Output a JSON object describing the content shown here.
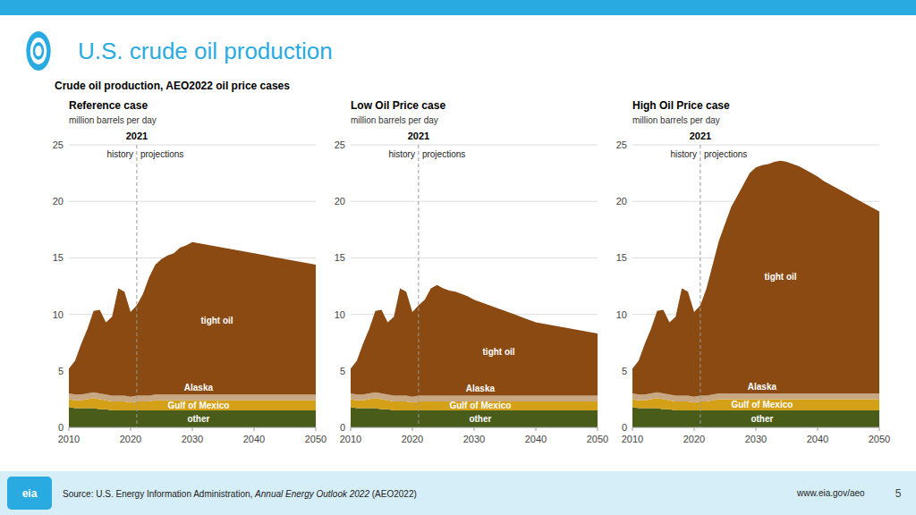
{
  "title": "U.S. crude oil production",
  "subtitle": "Crude oil production, AEO2022 oil price cases",
  "color": "#29ABE2",
  "footer_color": "#D6EEF8",
  "badge": "eia",
  "source_text": "Source: U.S. Energy Information Administration, ",
  "source_italic": "Annual Energy Outlook 2022",
  "source_suffix": " (AEO2022)",
  "url": "www.eia.gov/aeo",
  "page_number": "5",
  "chart_data": [
    {
      "type": "area",
      "stacked": true,
      "grid": true,
      "title": "Reference case",
      "subtitle": "million barrels per day",
      "x": [
        2010,
        2011,
        2012,
        2013,
        2014,
        2015,
        2016,
        2017,
        2018,
        2019,
        2020,
        2021,
        2022,
        2023,
        2024,
        2025,
        2026,
        2027,
        2028,
        2029,
        2030,
        2031,
        2032,
        2033,
        2034,
        2035,
        2036,
        2037,
        2038,
        2039,
        2040,
        2041,
        2042,
        2043,
        2044,
        2045,
        2046,
        2047,
        2048,
        2049,
        2050
      ],
      "xlim": [
        2010,
        2050
      ],
      "xticks": [
        2010,
        2020,
        2030,
        2040,
        2050
      ],
      "ylim": [
        0,
        25
      ],
      "yticks": [
        0,
        5,
        10,
        15,
        20,
        25
      ],
      "annotations": [
        {
          "x": 2021,
          "text": "2021"
        },
        {
          "text": "history"
        },
        {
          "text": "projections"
        }
      ],
      "series": [
        {
          "name": "other",
          "color": "#4A5C1A",
          "values": [
            1.8,
            1.7,
            1.7,
            1.7,
            1.7,
            1.6,
            1.6,
            1.5,
            1.5,
            1.5,
            1.5,
            1.5,
            1.5,
            1.5,
            1.5,
            1.5,
            1.5,
            1.5,
            1.5,
            1.5,
            1.5,
            1.5,
            1.5,
            1.5,
            1.5,
            1.5,
            1.5,
            1.5,
            1.5,
            1.5,
            1.5,
            1.5,
            1.5,
            1.5,
            1.5,
            1.5,
            1.5,
            1.5,
            1.5,
            1.5,
            1.5
          ]
        },
        {
          "name": "Gulf of Mexico",
          "color": "#D4A017",
          "values": [
            0.7,
            0.7,
            0.7,
            0.8,
            0.9,
            0.9,
            0.8,
            0.8,
            0.8,
            0.8,
            0.7,
            0.8,
            0.8,
            0.8,
            0.9,
            0.9,
            0.9,
            0.9,
            0.9,
            0.9,
            0.9,
            0.9,
            0.9,
            0.9,
            0.9,
            0.9,
            0.9,
            0.9,
            0.9,
            0.9,
            0.9,
            0.9,
            0.9,
            0.9,
            0.9,
            0.9,
            0.9,
            0.9,
            0.9,
            0.9,
            0.9
          ]
        },
        {
          "name": "Alaska",
          "color": "#C8A882",
          "values": [
            0.5,
            0.5,
            0.5,
            0.5,
            0.5,
            0.5,
            0.5,
            0.5,
            0.5,
            0.5,
            0.5,
            0.5,
            0.5,
            0.5,
            0.5,
            0.5,
            0.5,
            0.5,
            0.5,
            0.5,
            0.5,
            0.5,
            0.5,
            0.5,
            0.5,
            0.5,
            0.5,
            0.5,
            0.5,
            0.5,
            0.5,
            0.5,
            0.5,
            0.5,
            0.5,
            0.5,
            0.5,
            0.5,
            0.5,
            0.5,
            0.5
          ]
        },
        {
          "name": "tight oil",
          "color": "#8B4A12",
          "values": [
            2.2,
            3.0,
            4.5,
            5.7,
            7.2,
            7.4,
            6.4,
            7.0,
            9.5,
            9.2,
            7.5,
            8.0,
            9.0,
            10.5,
            11.5,
            12.0,
            12.3,
            12.5,
            13.0,
            13.2,
            13.5,
            13.4,
            13.3,
            13.2,
            13.1,
            13.0,
            12.9,
            12.8,
            12.7,
            12.6,
            12.5,
            12.4,
            12.3,
            12.2,
            12.1,
            12.0,
            11.9,
            11.8,
            11.7,
            11.6,
            11.5
          ]
        }
      ]
    },
    {
      "type": "area",
      "stacked": true,
      "grid": true,
      "title": "Low Oil Price case",
      "subtitle": "million barrels per day",
      "x": [
        2010,
        2011,
        2012,
        2013,
        2014,
        2015,
        2016,
        2017,
        2018,
        2019,
        2020,
        2021,
        2022,
        2023,
        2024,
        2025,
        2026,
        2027,
        2028,
        2029,
        2030,
        2031,
        2032,
        2033,
        2034,
        2035,
        2036,
        2037,
        2038,
        2039,
        2040,
        2041,
        2042,
        2043,
        2044,
        2045,
        2046,
        2047,
        2048,
        2049,
        2050
      ],
      "xlim": [
        2010,
        2050
      ],
      "xticks": [
        2010,
        2020,
        2030,
        2040,
        2050
      ],
      "ylim": [
        0,
        25
      ],
      "yticks": [
        0,
        5,
        10,
        15,
        20,
        25
      ],
      "annotations": [
        {
          "x": 2021,
          "text": "2021"
        },
        {
          "text": "history"
        },
        {
          "text": "projections"
        }
      ],
      "series": [
        {
          "name": "other",
          "color": "#4A5C1A",
          "values": [
            1.8,
            1.7,
            1.7,
            1.7,
            1.7,
            1.6,
            1.6,
            1.5,
            1.5,
            1.5,
            1.5,
            1.5,
            1.5,
            1.5,
            1.5,
            1.5,
            1.5,
            1.5,
            1.5,
            1.5,
            1.5,
            1.5,
            1.5,
            1.5,
            1.5,
            1.5,
            1.5,
            1.5,
            1.5,
            1.5,
            1.5,
            1.5,
            1.5,
            1.5,
            1.5,
            1.5,
            1.5,
            1.5,
            1.5,
            1.5,
            1.5
          ]
        },
        {
          "name": "Gulf of Mexico",
          "color": "#D4A017",
          "values": [
            0.7,
            0.7,
            0.7,
            0.8,
            0.9,
            0.9,
            0.8,
            0.8,
            0.8,
            0.8,
            0.7,
            0.8,
            0.8,
            0.8,
            0.8,
            0.8,
            0.8,
            0.8,
            0.8,
            0.8,
            0.8,
            0.8,
            0.8,
            0.8,
            0.8,
            0.8,
            0.8,
            0.8,
            0.8,
            0.8,
            0.8,
            0.8,
            0.8,
            0.8,
            0.8,
            0.8,
            0.8,
            0.8,
            0.8,
            0.8,
            0.8
          ]
        },
        {
          "name": "Alaska",
          "color": "#C8A882",
          "values": [
            0.5,
            0.5,
            0.5,
            0.5,
            0.5,
            0.5,
            0.5,
            0.5,
            0.5,
            0.5,
            0.5,
            0.5,
            0.5,
            0.5,
            0.5,
            0.5,
            0.5,
            0.5,
            0.5,
            0.5,
            0.5,
            0.5,
            0.5,
            0.5,
            0.5,
            0.5,
            0.5,
            0.5,
            0.5,
            0.5,
            0.5,
            0.5,
            0.5,
            0.5,
            0.5,
            0.5,
            0.5,
            0.5,
            0.5,
            0.5,
            0.5
          ]
        },
        {
          "name": "tight oil",
          "color": "#8B4A12",
          "values": [
            2.2,
            3.0,
            4.5,
            5.7,
            7.2,
            7.4,
            6.4,
            7.0,
            9.5,
            9.2,
            7.5,
            8.0,
            8.5,
            9.5,
            9.8,
            9.5,
            9.3,
            9.2,
            9.0,
            8.8,
            8.5,
            8.3,
            8.1,
            7.9,
            7.7,
            7.5,
            7.3,
            7.1,
            6.9,
            6.7,
            6.5,
            6.4,
            6.3,
            6.2,
            6.1,
            6.0,
            5.9,
            5.8,
            5.7,
            5.6,
            5.5
          ]
        }
      ]
    },
    {
      "type": "area",
      "stacked": true,
      "grid": true,
      "title": "High Oil Price case",
      "subtitle": "million barrels per day",
      "x": [
        2010,
        2011,
        2012,
        2013,
        2014,
        2015,
        2016,
        2017,
        2018,
        2019,
        2020,
        2021,
        2022,
        2023,
        2024,
        2025,
        2026,
        2027,
        2028,
        2029,
        2030,
        2031,
        2032,
        2033,
        2034,
        2035,
        2036,
        2037,
        2038,
        2039,
        2040,
        2041,
        2042,
        2043,
        2044,
        2045,
        2046,
        2047,
        2048,
        2049,
        2050
      ],
      "xlim": [
        2010,
        2050
      ],
      "xticks": [
        2010,
        2020,
        2030,
        2040,
        2050
      ],
      "ylim": [
        0,
        25
      ],
      "yticks": [
        0,
        5,
        10,
        15,
        20,
        25
      ],
      "annotations": [
        {
          "x": 2021,
          "text": "2021"
        },
        {
          "text": "history"
        },
        {
          "text": "projections"
        }
      ],
      "series": [
        {
          "name": "other",
          "color": "#4A5C1A",
          "values": [
            1.8,
            1.7,
            1.7,
            1.7,
            1.7,
            1.6,
            1.6,
            1.5,
            1.5,
            1.5,
            1.5,
            1.5,
            1.5,
            1.5,
            1.5,
            1.5,
            1.5,
            1.5,
            1.5,
            1.5,
            1.5,
            1.5,
            1.5,
            1.5,
            1.5,
            1.5,
            1.5,
            1.5,
            1.5,
            1.5,
            1.5,
            1.5,
            1.5,
            1.5,
            1.5,
            1.5,
            1.5,
            1.5,
            1.5,
            1.5,
            1.5
          ]
        },
        {
          "name": "Gulf of Mexico",
          "color": "#D4A017",
          "values": [
            0.7,
            0.7,
            0.7,
            0.8,
            0.9,
            0.9,
            0.8,
            0.8,
            0.8,
            0.8,
            0.7,
            0.8,
            0.8,
            0.9,
            1.0,
            1.0,
            1.0,
            1.0,
            1.0,
            1.0,
            1.0,
            1.0,
            1.0,
            1.0,
            1.0,
            1.0,
            1.0,
            1.0,
            1.0,
            1.0,
            1.0,
            1.0,
            1.0,
            1.0,
            1.0,
            1.0,
            1.0,
            1.0,
            1.0,
            1.0,
            1.0
          ]
        },
        {
          "name": "Alaska",
          "color": "#C8A882",
          "values": [
            0.5,
            0.5,
            0.5,
            0.5,
            0.5,
            0.5,
            0.5,
            0.5,
            0.5,
            0.5,
            0.5,
            0.5,
            0.5,
            0.5,
            0.5,
            0.5,
            0.5,
            0.5,
            0.5,
            0.5,
            0.5,
            0.5,
            0.5,
            0.5,
            0.5,
            0.5,
            0.5,
            0.5,
            0.5,
            0.5,
            0.5,
            0.5,
            0.5,
            0.5,
            0.5,
            0.5,
            0.5,
            0.5,
            0.5,
            0.5,
            0.5
          ]
        },
        {
          "name": "tight oil",
          "color": "#8B4A12",
          "values": [
            2.2,
            3.0,
            4.5,
            5.7,
            7.2,
            7.4,
            6.4,
            7.0,
            9.5,
            9.2,
            7.5,
            8.0,
            9.5,
            11.5,
            13.5,
            15.0,
            16.5,
            17.5,
            18.5,
            19.5,
            20.0,
            20.2,
            20.3,
            20.5,
            20.6,
            20.5,
            20.3,
            20.1,
            19.8,
            19.5,
            19.2,
            18.8,
            18.5,
            18.2,
            17.9,
            17.6,
            17.3,
            17.0,
            16.7,
            16.4,
            16.1
          ]
        }
      ]
    }
  ]
}
